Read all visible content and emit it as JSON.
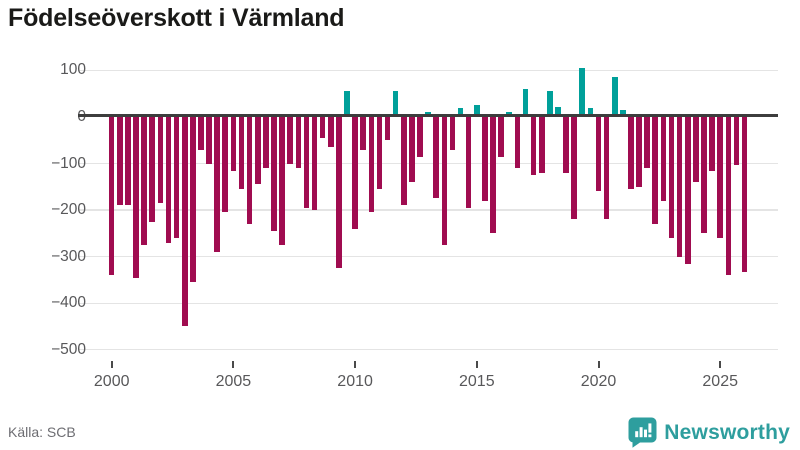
{
  "title": "Födelseöverskott i Värmland",
  "source": "Källa: SCB",
  "branding": {
    "name": "Newsworthy",
    "icon": "newsworthy-speech-bubble-barchart-icon"
  },
  "colors": {
    "positive_bar": "#00a09a",
    "negative_bar": "#a00c50",
    "zero_axis": "#3d3d3d",
    "gridline": "#e4e4e4",
    "axis_text": "#58585a",
    "title_text": "#1a1a18",
    "source_text": "#6d6d72",
    "brand_teal": "#2e9e9e"
  },
  "chart_data": {
    "type": "bar",
    "title": "Födelseöverskott i Värmland",
    "xlabel": "",
    "ylabel": "",
    "ylim": [
      -500,
      100
    ],
    "grid": true,
    "x_start_year": 2000,
    "periods_per_year": 3,
    "x_tick_years": [
      2000,
      2005,
      2010,
      2015,
      2020,
      2025
    ],
    "x_tick_labels": [
      "2000",
      "2005",
      "2010",
      "2015",
      "2020",
      "2025"
    ],
    "y_tick_values": [
      100,
      0,
      -100,
      -200,
      -300,
      -400,
      -500
    ],
    "y_tick_labels": [
      "100",
      "0",
      "−100",
      "−200",
      "−300",
      "−400",
      "−500"
    ],
    "values": [
      -340,
      -190,
      -190,
      -345,
      -275,
      -225,
      -185,
      -270,
      -260,
      -450,
      -355,
      -70,
      -100,
      -290,
      -205,
      -115,
      -155,
      -230,
      -145,
      -110,
      -245,
      -275,
      -100,
      -110,
      -195,
      -200,
      -45,
      -65,
      -325,
      55,
      -240,
      -70,
      -205,
      -155,
      -50,
      55,
      -190,
      -140,
      -85,
      10,
      -175,
      -275,
      -70,
      20,
      -195,
      25,
      -180,
      -250,
      -85,
      10,
      -110,
      60,
      -125,
      -120,
      55,
      22,
      -120,
      -220,
      105,
      20,
      -160,
      -220,
      85,
      15,
      -155,
      -150,
      -110,
      -230,
      -180,
      -260,
      -300,
      -315,
      -140,
      -250,
      -117,
      -259,
      -339,
      -103,
      -332
    ]
  }
}
